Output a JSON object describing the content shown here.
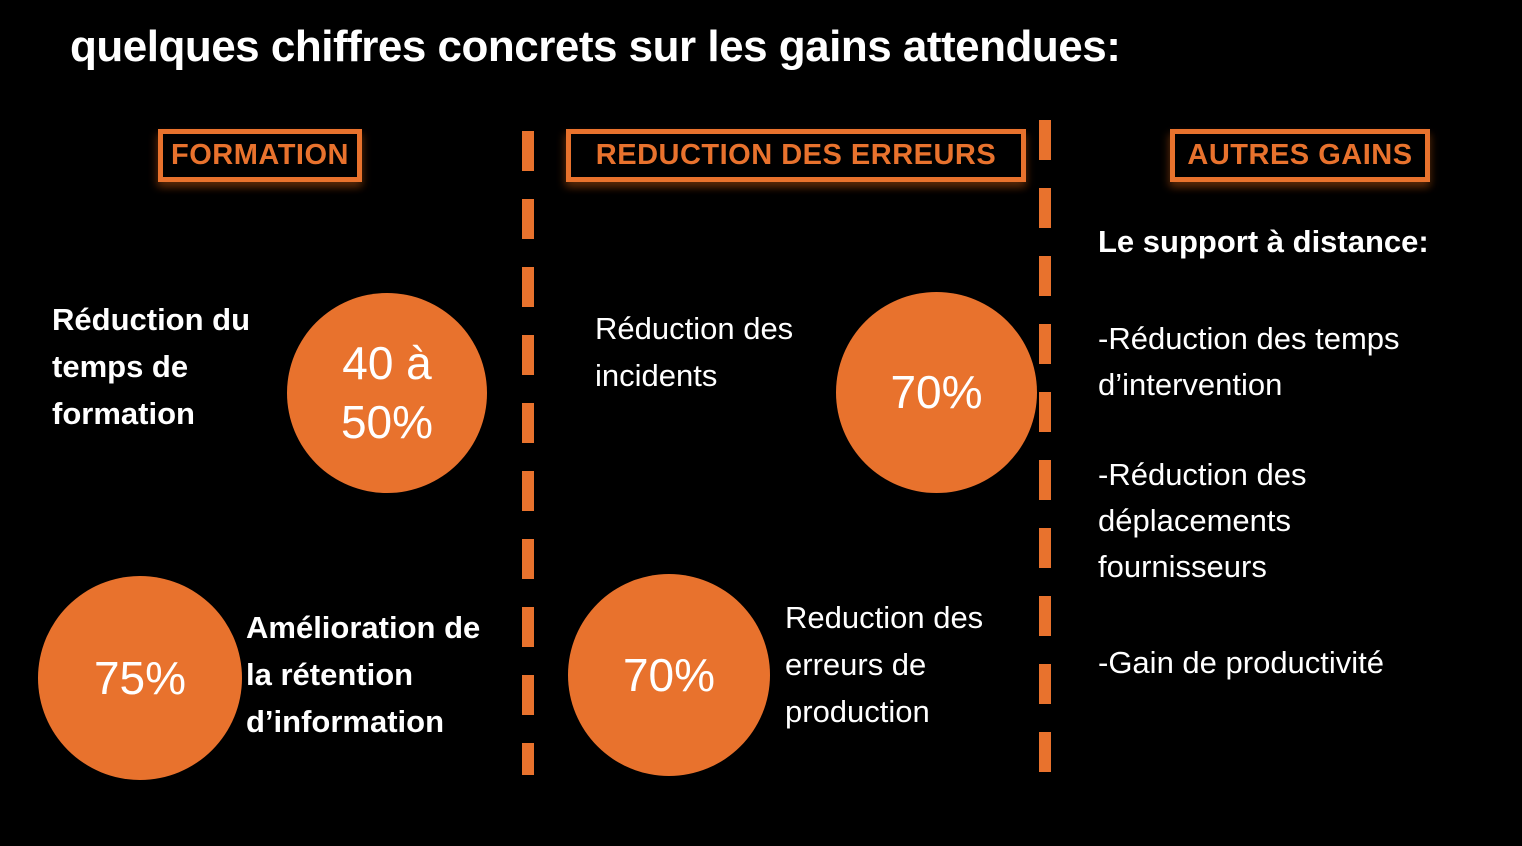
{
  "title": "quelques chiffres concrets sur les gains attendues:",
  "colors": {
    "accent": "#E8722D",
    "background": "#000000",
    "text": "#FFFFFF"
  },
  "columns": [
    {
      "header": "FORMATION",
      "stats": [
        {
          "label": "Réduction du temps de formation",
          "value": "40 à 50%"
        },
        {
          "label": "Amélioration de la rétention d’information",
          "value": "75%"
        }
      ]
    },
    {
      "header": "REDUCTION DES ERREURS",
      "stats": [
        {
          "label": "Réduction des incidents",
          "value": "70%"
        },
        {
          "label": "Reduction des erreurs de production",
          "value": "70%"
        }
      ]
    },
    {
      "header": "AUTRES GAINS",
      "intro": "Le support à distance:",
      "bullets": [
        "-Réduction des temps d’intervention",
        "-Réduction des déplacements fournisseurs",
        "-Gain de productivité"
      ]
    }
  ]
}
